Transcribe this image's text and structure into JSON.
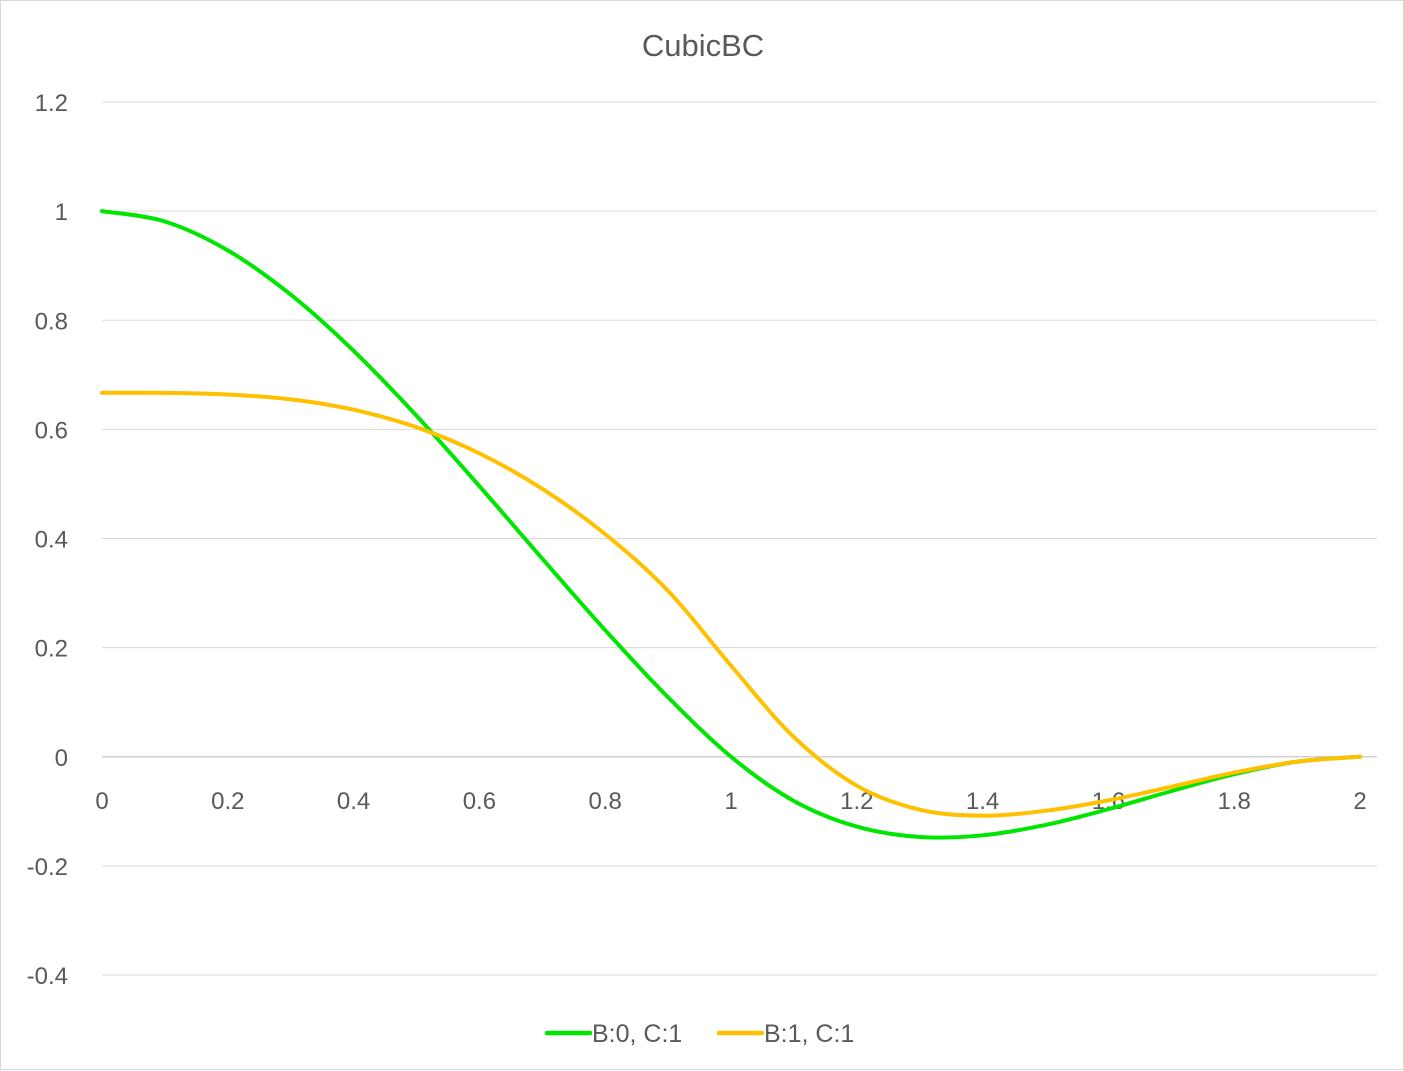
{
  "chart_data": {
    "type": "line",
    "title": "CubicBC",
    "xlabel": "",
    "ylabel": "",
    "xlim": [
      0,
      2
    ],
    "ylim": [
      -0.4,
      1.2
    ],
    "x_ticks": [
      "0",
      "0.2",
      "0.4",
      "0.6",
      "0.8",
      "1",
      "1.2",
      "1.4",
      "1.6",
      "1.8",
      "2"
    ],
    "y_ticks": [
      "1.2",
      "1",
      "0.8",
      "0.6",
      "0.4",
      "0.2",
      "0",
      "-0.2",
      "-0.4"
    ],
    "grid": "horizontal",
    "legend_position": "bottom",
    "x": [
      0,
      0.1,
      0.2,
      0.3,
      0.4,
      0.5,
      0.6,
      0.7,
      0.8,
      0.9,
      1.0,
      1.1,
      1.2,
      1.3,
      1.4,
      1.5,
      1.6,
      1.7,
      1.8,
      1.9,
      2.0
    ],
    "series": [
      {
        "name": "B:0, C:1",
        "color": "#00e600",
        "values": [
          1.0,
          0.981,
          0.928,
          0.847,
          0.744,
          0.625,
          0.496,
          0.363,
          0.232,
          0.109,
          0.0,
          -0.081,
          -0.128,
          -0.147,
          -0.144,
          -0.125,
          -0.096,
          -0.063,
          -0.032,
          -0.009,
          0.0
        ]
      },
      {
        "name": "B:1, C:1",
        "color": "#ffc000",
        "values": [
          0.667,
          0.667,
          0.664,
          0.655,
          0.636,
          0.604,
          0.556,
          0.491,
          0.408,
          0.304,
          0.167,
          0.036,
          -0.053,
          -0.097,
          -0.108,
          -0.099,
          -0.08,
          -0.055,
          -0.029,
          -0.009,
          0.0
        ]
      }
    ]
  }
}
